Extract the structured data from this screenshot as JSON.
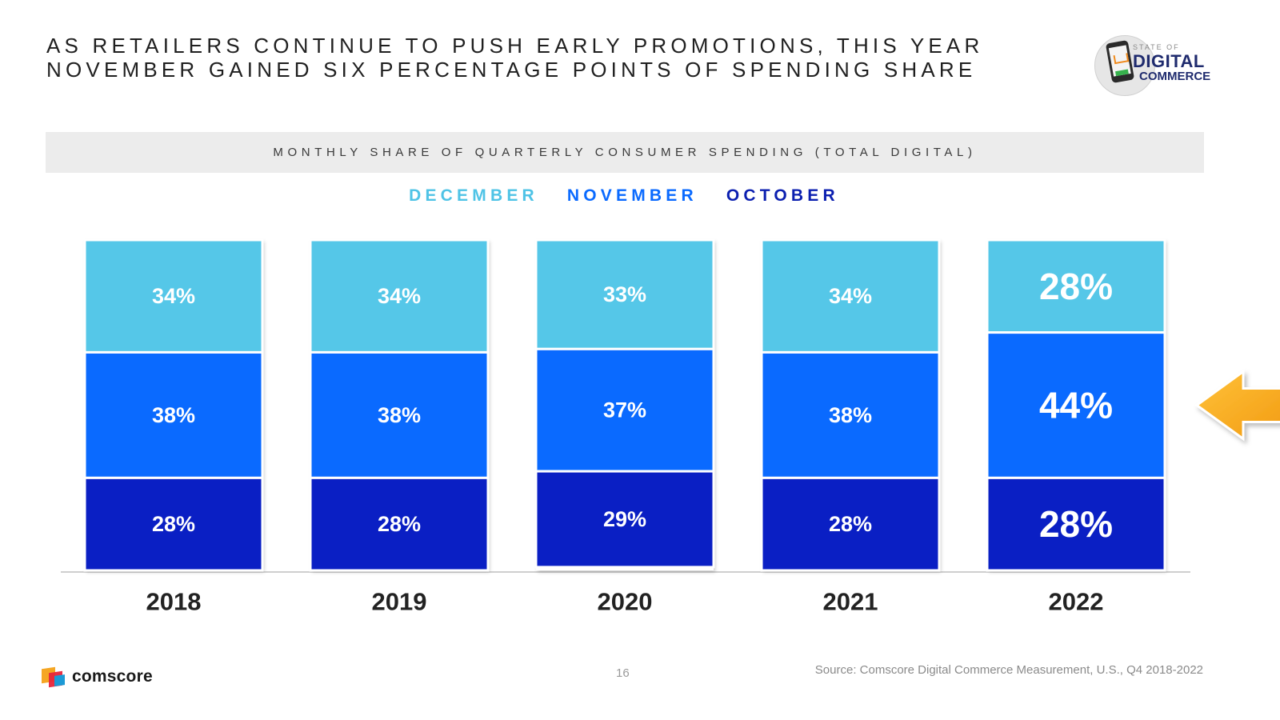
{
  "title": {
    "line1": "AS RETAILERS CONTINUE TO PUSH EARLY PROMOTIONS, THIS YEAR",
    "line2": "NOVEMBER GAINED SIX PERCENTAGE POINTS OF SPENDING SHARE"
  },
  "badge": {
    "line1": "STATE OF",
    "line2": "DIGITAL",
    "line3": "COMMERCE"
  },
  "chart_data": {
    "type": "bar",
    "stacked": true,
    "subtitle": "MONTHLY SHARE OF QUARTERLY CONSUMER SPENDING (TOTAL DIGITAL)",
    "categories": [
      "2018",
      "2019",
      "2020",
      "2021",
      "2022"
    ],
    "series": [
      {
        "name": "DECEMBER",
        "color": "#55c7e8",
        "values": [
          34,
          34,
          33,
          34,
          28
        ]
      },
      {
        "name": "NOVEMBER",
        "color": "#0a6aff",
        "values": [
          38,
          38,
          37,
          38,
          44
        ]
      },
      {
        "name": "OCTOBER",
        "color": "#0a1fc4",
        "values": [
          28,
          28,
          29,
          28,
          28
        ]
      }
    ],
    "label_suffix": "%",
    "ylim": [
      0,
      100
    ],
    "highlight": {
      "category": "2022",
      "series": "NOVEMBER",
      "marker": "arrow",
      "color": "#f7a81b"
    }
  },
  "footer": {
    "brand": "comscore",
    "page_number": "16",
    "source": "Source: Comscore Digital Commerce Measurement, U.S., Q4 2018-2022"
  }
}
